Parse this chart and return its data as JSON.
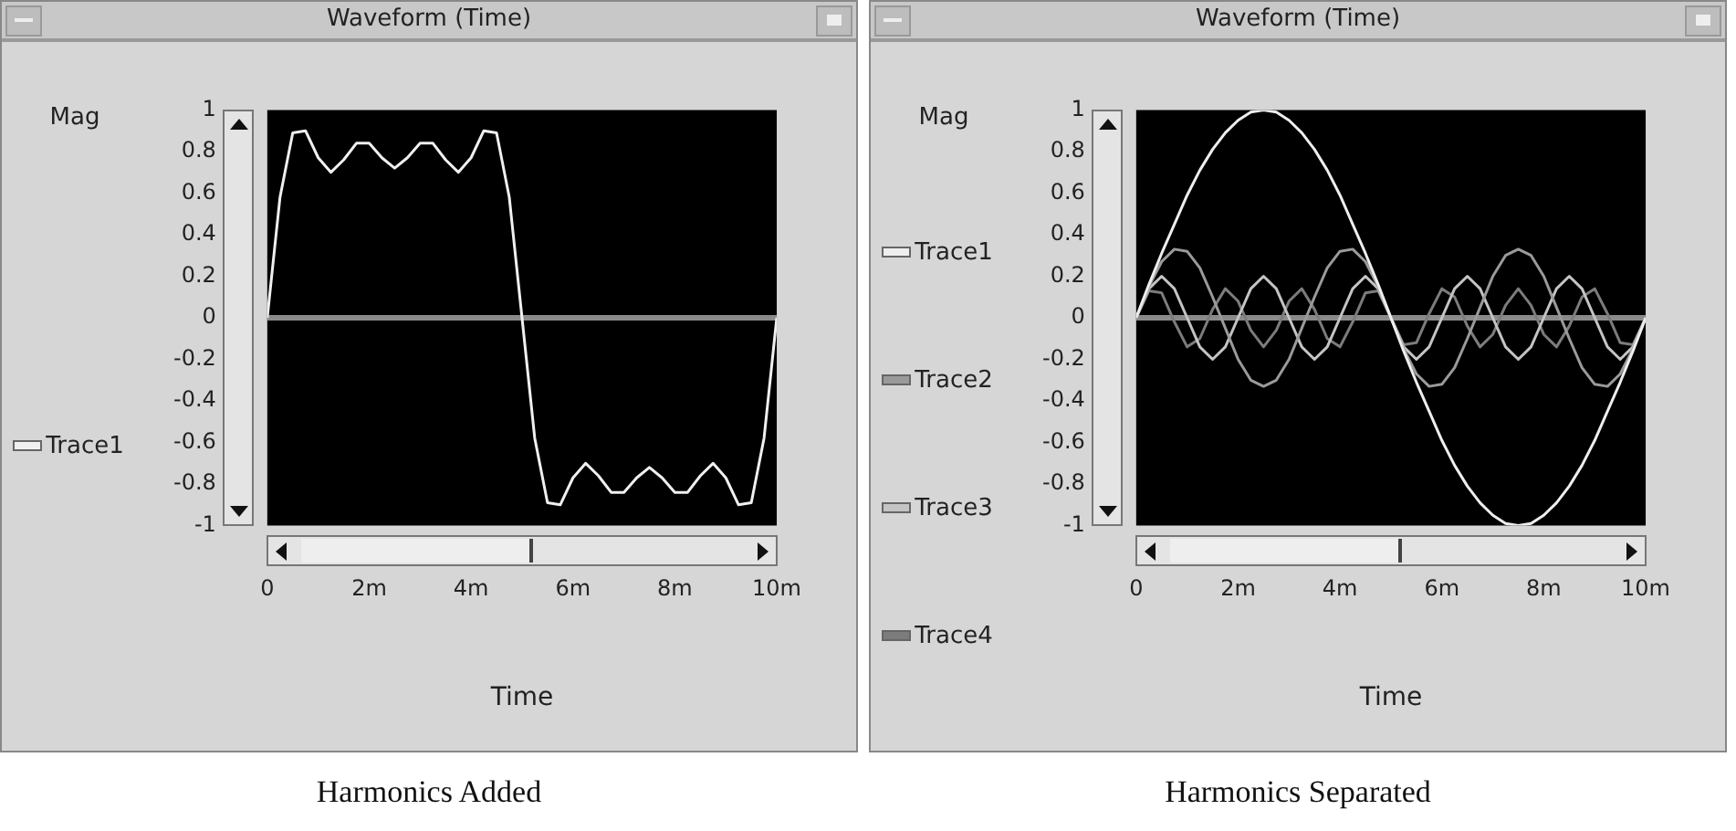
{
  "chart_data": [
    {
      "type": "line",
      "title": "Waveform (Time)",
      "subtitle": "Harmonics Added",
      "xlabel": "Time",
      "ylabel": "Mag",
      "legend": "left",
      "x": [
        0,
        0.25,
        0.5,
        0.75,
        1,
        1.25,
        1.5,
        1.75,
        2,
        2.25,
        2.5,
        2.75,
        3,
        3.25,
        3.5,
        3.75,
        4,
        4.25,
        4.5,
        4.75,
        5,
        5.25,
        5.5,
        5.75,
        6,
        6.25,
        6.5,
        6.75,
        7,
        7.25,
        7.5,
        7.75,
        8,
        8.25,
        8.5,
        8.75,
        9,
        9.25,
        9.5,
        9.75,
        10
      ],
      "series": [
        {
          "name": "Trace1",
          "color": "#f0f0f0",
          "values": [
            0,
            0.58,
            0.89,
            0.9,
            0.77,
            0.7,
            0.76,
            0.84,
            0.84,
            0.77,
            0.72,
            0.77,
            0.84,
            0.84,
            0.76,
            0.7,
            0.77,
            0.9,
            0.89,
            0.58,
            0,
            -0.58,
            -0.89,
            -0.9,
            -0.77,
            -0.7,
            -0.76,
            -0.84,
            -0.84,
            -0.77,
            -0.72,
            -0.77,
            -0.84,
            -0.84,
            -0.76,
            -0.7,
            -0.77,
            -0.9,
            -0.89,
            -0.58,
            0
          ]
        }
      ],
      "xlim": [
        0,
        10
      ],
      "xticks": [
        0,
        {
          "value": 2,
          "label": "2m"
        },
        {
          "value": 4,
          "label": "4m"
        },
        {
          "value": 6,
          "label": "6m"
        },
        {
          "value": 8,
          "label": "8m"
        },
        {
          "value": 10,
          "label": "10m"
        }
      ],
      "ylim": [
        -1,
        1
      ],
      "yticks": [
        -1,
        -0.8,
        -0.6,
        -0.4,
        -0.2,
        0,
        0.2,
        0.4,
        0.6,
        0.8,
        1
      ],
      "ref_lines": [
        {
          "axis": "y",
          "value": 0,
          "color": "#8a8a8a"
        }
      ]
    },
    {
      "type": "line",
      "title": "Waveform (Time)",
      "subtitle": "Harmonics Separated",
      "xlabel": "Time",
      "ylabel": "Mag",
      "legend": "left",
      "x": [
        0,
        0.25,
        0.5,
        0.75,
        1,
        1.25,
        1.5,
        1.75,
        2,
        2.25,
        2.5,
        2.75,
        3,
        3.25,
        3.5,
        3.75,
        4,
        4.25,
        4.5,
        4.75,
        5,
        5.25,
        5.5,
        5.75,
        6,
        6.25,
        6.5,
        6.75,
        7,
        7.25,
        7.5,
        7.75,
        8,
        8.25,
        8.5,
        8.75,
        9,
        9.25,
        9.5,
        9.75,
        10
      ],
      "series": [
        {
          "name": "Trace1",
          "color": "#eeeeee",
          "values": [
            0,
            0.16,
            0.31,
            0.45,
            0.59,
            0.71,
            0.81,
            0.89,
            0.95,
            0.99,
            1,
            0.99,
            0.95,
            0.89,
            0.81,
            0.71,
            0.59,
            0.45,
            0.31,
            0.16,
            0,
            -0.16,
            -0.31,
            -0.45,
            -0.59,
            -0.71,
            -0.81,
            -0.89,
            -0.95,
            -0.99,
            -1,
            -0.99,
            -0.95,
            -0.89,
            -0.81,
            -0.71,
            -0.59,
            -0.45,
            -0.31,
            -0.16,
            0
          ]
        },
        {
          "name": "Trace2",
          "color": "#9a9a9a",
          "values": [
            0,
            0.15,
            0.27,
            0.33,
            0.32,
            0.24,
            0.1,
            -0.05,
            -0.2,
            -0.3,
            -0.33,
            -0.3,
            -0.2,
            -0.05,
            0.1,
            0.24,
            0.32,
            0.33,
            0.27,
            0.15,
            0,
            -0.15,
            -0.27,
            -0.33,
            -0.32,
            -0.24,
            -0.1,
            0.05,
            0.2,
            0.3,
            0.33,
            0.3,
            0.2,
            0.05,
            -0.1,
            -0.24,
            -0.32,
            -0.33,
            -0.27,
            -0.15,
            0
          ]
        },
        {
          "name": "Trace3",
          "color": "#c4c4c4",
          "values": [
            0,
            0.14,
            0.2,
            0.14,
            0,
            -0.14,
            -0.2,
            -0.14,
            0,
            0.14,
            0.2,
            0.14,
            0,
            -0.14,
            -0.2,
            -0.14,
            0,
            0.14,
            0.2,
            0.14,
            0,
            -0.14,
            -0.2,
            -0.14,
            0,
            0.14,
            0.2,
            0.14,
            0,
            -0.14,
            -0.2,
            -0.14,
            0,
            0.14,
            0.2,
            0.14,
            0,
            -0.14,
            -0.2,
            -0.14,
            0
          ]
        },
        {
          "name": "Trace4",
          "color": "#7c7c7c",
          "values": [
            0,
            0.13,
            0.12,
            -0.02,
            -0.14,
            -0.1,
            0.04,
            0.14,
            0.08,
            -0.06,
            -0.14,
            -0.06,
            0.08,
            0.14,
            0.04,
            -0.1,
            -0.14,
            -0.02,
            0.12,
            0.13,
            0,
            -0.13,
            -0.12,
            0.02,
            0.14,
            0.1,
            -0.04,
            -0.14,
            -0.08,
            0.06,
            0.14,
            0.06,
            -0.08,
            -0.14,
            -0.04,
            0.1,
            0.14,
            0.02,
            -0.12,
            -0.13,
            0
          ]
        }
      ],
      "xlim": [
        0,
        10
      ],
      "xticks": [
        0,
        {
          "value": 2,
          "label": "2m"
        },
        {
          "value": 4,
          "label": "4m"
        },
        {
          "value": 6,
          "label": "6m"
        },
        {
          "value": 8,
          "label": "8m"
        },
        {
          "value": 10,
          "label": "10m"
        }
      ],
      "ylim": [
        -1,
        1
      ],
      "yticks": [
        -1,
        -0.8,
        -0.6,
        -0.4,
        -0.2,
        0,
        0.2,
        0.4,
        0.6,
        0.8,
        1
      ],
      "ref_lines": [
        {
          "axis": "y",
          "value": 0,
          "color": "#8a8a8a"
        }
      ]
    }
  ]
}
